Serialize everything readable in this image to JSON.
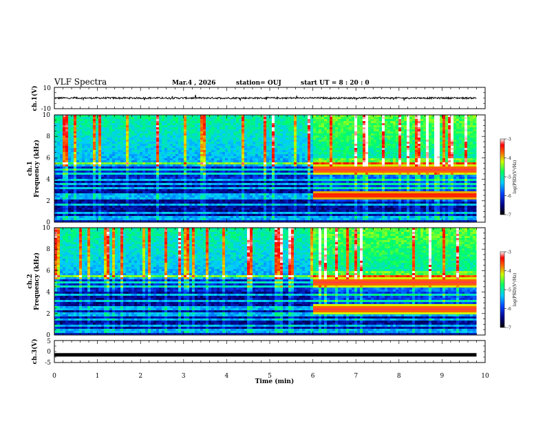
{
  "header": {
    "title": "VLF Spectra",
    "date": "Mar.4 , 2026",
    "station": "station= OUJ",
    "start_ut": "start UT =  8 : 20 : 0"
  },
  "chart_data": [
    {
      "type": "line",
      "id": "ch1-waveform",
      "ylabel": "ch.1(V)",
      "ylim": [
        -10,
        10
      ],
      "yticks": [
        -10,
        10
      ],
      "xlim": [
        0,
        10
      ],
      "description_level_v": 0
    },
    {
      "type": "heatmap",
      "id": "ch1-spectrogram",
      "ylabel": "ch.1\nFrequency (kHz)",
      "ylabel_lines": [
        "ch.1",
        "Frequency (kHz)"
      ],
      "ylim": [
        0,
        10
      ],
      "yticks": [
        0,
        2,
        4,
        6,
        8,
        10
      ],
      "xlim": [
        0,
        10
      ],
      "colorbar": {
        "label": "log(PSD)(V²/Hz)",
        "range": [
          -7,
          -3
        ],
        "ticks": [
          -7,
          -6,
          -5,
          -4,
          -3
        ]
      },
      "bands_khz": [
        0.3,
        0.6,
        1.0,
        1.7,
        2.3,
        2.6,
        3.2,
        3.6,
        4.0,
        4.6,
        5.0,
        5.6
      ],
      "strong_bands_after_min6_khz": [
        2.6,
        5.0
      ]
    },
    {
      "type": "heatmap",
      "id": "ch2-spectrogram",
      "ylabel": "ch.2\nFrequency (kHz)",
      "ylabel_lines": [
        "ch.2",
        "Frequency (kHz)"
      ],
      "ylim": [
        0,
        10
      ],
      "yticks": [
        0,
        2,
        4,
        6,
        8,
        10
      ],
      "xlim": [
        0,
        10
      ],
      "colorbar": {
        "label": "log(PSD)(V²/Hz)",
        "range": [
          -7,
          -3
        ],
        "ticks": [
          -7,
          -6,
          -5,
          -4,
          -3
        ]
      },
      "bands_khz": [
        0.5,
        1.0,
        1.6,
        2.0,
        2.6,
        3.2,
        3.8,
        4.6,
        5.0,
        5.6
      ],
      "strong_bands_after_min6_khz": [
        2.5,
        5.0
      ]
    },
    {
      "type": "line",
      "id": "ch3-waveform",
      "ylabel": "ch.3(V)",
      "ylim": [
        -5,
        5
      ],
      "yticks": [
        -5,
        0,
        5
      ],
      "xlim": [
        0,
        10
      ],
      "constant_value_v": -1.5
    }
  ],
  "xaxis": {
    "label": "Time (min)",
    "range": [
      0,
      10
    ],
    "ticks": [
      0,
      1,
      2,
      3,
      4,
      5,
      6,
      7,
      8,
      9,
      10
    ]
  }
}
